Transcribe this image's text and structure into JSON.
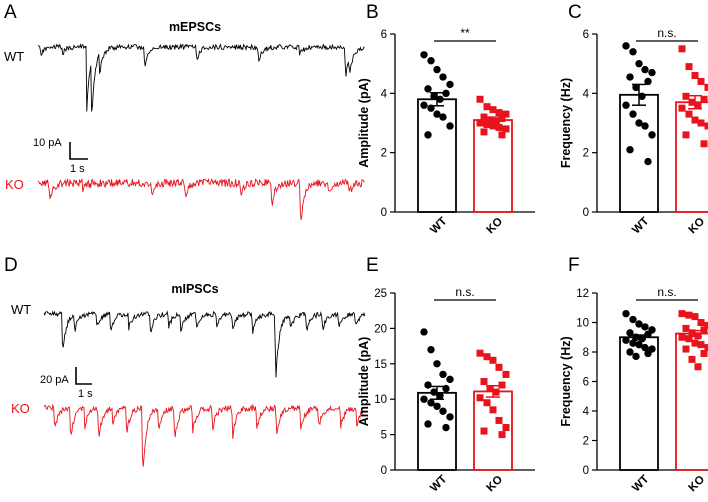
{
  "colors": {
    "wt": "#000000",
    "ko": "#e8131b"
  },
  "chart_data": [
    {
      "panel": "A",
      "type": "trace",
      "title": "mEPSCs",
      "traces": [
        {
          "label": "WT",
          "color": "#000000"
        },
        {
          "label": "KO",
          "color": "#e8131b"
        }
      ],
      "scale_bar": {
        "amplitude": "10 pA",
        "time": "1 s"
      }
    },
    {
      "panel": "B",
      "type": "bar",
      "categories": [
        "WT",
        "KO"
      ],
      "ylabel": "Amplitude (pA)",
      "ylim": [
        0,
        6
      ],
      "yticks": [
        0,
        2,
        4,
        6
      ],
      "significance": "**",
      "series": [
        {
          "name": "WT",
          "mean": 3.8,
          "sem": 0.22,
          "color": "#000000",
          "points": [
            5.3,
            5.1,
            4.8,
            4.55,
            4.3,
            4.15,
            4.0,
            3.9,
            3.8,
            3.6,
            3.5,
            3.3,
            3.2,
            2.9,
            2.6
          ]
        },
        {
          "name": "KO",
          "mean": 3.1,
          "sem": 0.1,
          "color": "#e8131b",
          "points": [
            3.8,
            3.55,
            3.45,
            3.35,
            3.3,
            3.2,
            3.15,
            3.1,
            3.05,
            3.0,
            2.95,
            2.9,
            2.85,
            2.8,
            2.7,
            2.6
          ]
        }
      ]
    },
    {
      "panel": "C",
      "type": "bar",
      "categories": [
        "WT",
        "KO"
      ],
      "ylabel": "Frequency (Hz)",
      "ylim": [
        0,
        6
      ],
      "yticks": [
        0,
        2,
        4,
        6
      ],
      "significance": "n.s.",
      "series": [
        {
          "name": "WT",
          "mean": 3.95,
          "sem": 0.35,
          "color": "#000000",
          "points": [
            5.6,
            5.4,
            5.0,
            4.8,
            4.7,
            4.55,
            4.4,
            4.2,
            3.9,
            3.6,
            3.3,
            3.0,
            2.9,
            2.6,
            2.1,
            1.7
          ]
        },
        {
          "name": "KO",
          "mean": 3.7,
          "sem": 0.22,
          "color": "#e8131b",
          "points": [
            5.5,
            4.9,
            4.6,
            4.4,
            4.2,
            3.9,
            3.8,
            3.7,
            3.6,
            3.5,
            3.3,
            3.1,
            3.0,
            2.9,
            2.6,
            2.3
          ]
        }
      ]
    },
    {
      "panel": "D",
      "type": "trace",
      "title": "mIPSCs",
      "traces": [
        {
          "label": "WT",
          "color": "#000000"
        },
        {
          "label": "KO",
          "color": "#e8131b"
        }
      ],
      "scale_bar": {
        "amplitude": "20 pA",
        "time": "1 s"
      }
    },
    {
      "panel": "E",
      "type": "bar",
      "categories": [
        "WT",
        "KO"
      ],
      "ylabel": "Amplitude (pA)",
      "ylim": [
        0,
        25
      ],
      "yticks": [
        0,
        5,
        10,
        15,
        20,
        25
      ],
      "significance": "n.s.",
      "series": [
        {
          "name": "WT",
          "mean": 10.9,
          "sem": 0.9,
          "color": "#000000",
          "points": [
            19.5,
            17.0,
            15.0,
            13.5,
            12.8,
            12.0,
            11.5,
            11.0,
            10.5,
            10.0,
            9.5,
            9.0,
            8.3,
            7.5,
            6.5,
            6.0
          ]
        },
        {
          "name": "KO",
          "mean": 11.1,
          "sem": 0.8,
          "color": "#e8131b",
          "points": [
            16.5,
            16.0,
            15.5,
            14.5,
            13.5,
            12.5,
            12.0,
            11.5,
            11.0,
            10.2,
            9.5,
            8.5,
            7.0,
            6.0,
            5.5,
            5.0
          ]
        }
      ]
    },
    {
      "panel": "F",
      "type": "bar",
      "categories": [
        "WT",
        "KO"
      ],
      "ylabel": "Frequency (Hz)",
      "ylim": [
        0,
        12
      ],
      "yticks": [
        0,
        2,
        4,
        6,
        8,
        10,
        12
      ],
      "significance": "n.s.",
      "series": [
        {
          "name": "WT",
          "mean": 9.0,
          "sem": 0.15,
          "color": "#000000",
          "points": [
            10.6,
            10.2,
            9.9,
            9.7,
            9.5,
            9.3,
            9.2,
            9.0,
            8.9,
            8.8,
            8.6,
            8.5,
            8.3,
            8.2,
            8.0,
            7.9,
            7.7
          ]
        },
        {
          "name": "KO",
          "mean": 9.25,
          "sem": 0.2,
          "color": "#e8131b",
          "points": [
            10.6,
            10.5,
            10.4,
            10.0,
            9.8,
            9.6,
            9.5,
            9.3,
            9.1,
            9.0,
            8.9,
            8.6,
            8.5,
            8.3,
            8.2,
            7.9,
            7.5,
            7.0
          ]
        }
      ]
    }
  ]
}
